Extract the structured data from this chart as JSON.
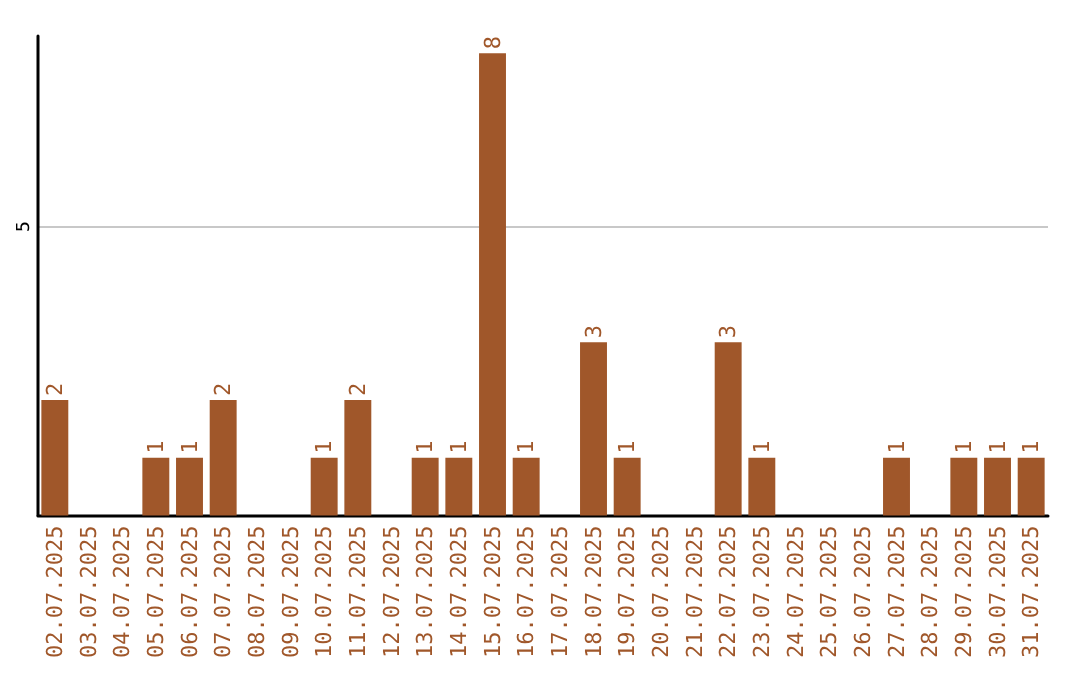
{
  "chart_data": {
    "type": "bar",
    "categories": [
      "02.07.2025",
      "03.07.2025",
      "04.07.2025",
      "05.07.2025",
      "06.07.2025",
      "07.07.2025",
      "08.07.2025",
      "09.07.2025",
      "10.07.2025",
      "11.07.2025",
      "12.07.2025",
      "13.07.2025",
      "14.07.2025",
      "15.07.2025",
      "16.07.2025",
      "17.07.2025",
      "18.07.2025",
      "19.07.2025",
      "20.07.2025",
      "21.07.2025",
      "22.07.2025",
      "23.07.2025",
      "24.07.2025",
      "25.07.2025",
      "26.07.2025",
      "27.07.2025",
      "28.07.2025",
      "29.07.2025",
      "30.07.2025",
      "31.07.2025"
    ],
    "values": [
      2,
      0,
      0,
      1,
      1,
      2,
      0,
      0,
      1,
      2,
      0,
      1,
      1,
      8,
      1,
      0,
      3,
      1,
      0,
      0,
      3,
      1,
      0,
      0,
      0,
      1,
      0,
      1,
      1,
      1
    ],
    "value_labels": [
      "2",
      null,
      null,
      "1",
      "1",
      "2",
      null,
      null,
      "1",
      "2",
      null,
      "1",
      "1",
      "8",
      "1",
      null,
      "3",
      "1",
      null,
      null,
      "3",
      "1",
      null,
      null,
      null,
      "1",
      null,
      "1",
      "1",
      "1"
    ],
    "color": "#a0572a",
    "ylim": [
      0,
      8.3
    ],
    "yticks": [
      5
    ],
    "grid": "y"
  }
}
